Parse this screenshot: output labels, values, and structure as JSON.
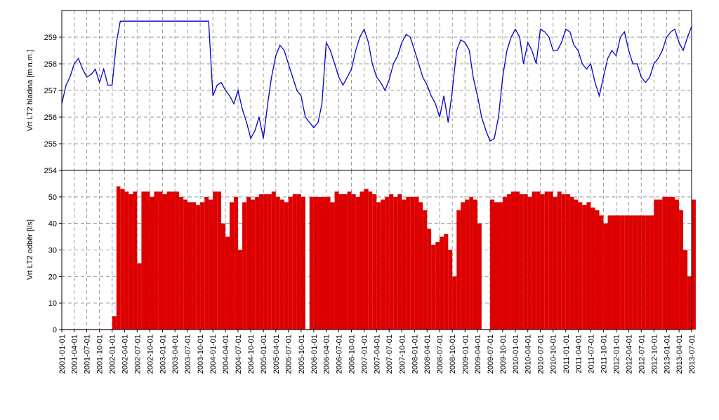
{
  "chart_data": [
    {
      "type": "line",
      "y_label": "Vrt LT2 hladina [m n.m.]",
      "xlim": [
        "2001-01-01",
        "2013-07-01"
      ],
      "ylim": [
        254,
        260
      ],
      "yticks": [
        254,
        255,
        256,
        257,
        258,
        259
      ],
      "grid": true,
      "x": [
        "2001-01-01",
        "2001-02-01",
        "2001-03-01",
        "2001-04-01",
        "2001-05-01",
        "2001-06-01",
        "2001-07-01",
        "2001-08-01",
        "2001-09-01",
        "2001-10-01",
        "2001-11-01",
        "2001-12-01",
        "2002-01-01",
        "2002-02-01",
        "2002-03-01",
        "2002-04-01",
        "2002-05-01",
        "2002-06-01",
        "2002-07-01",
        "2002-08-01",
        "2002-09-01",
        "2002-10-01",
        "2002-11-01",
        "2002-12-01",
        "2003-01-01",
        "2003-02-01",
        "2003-03-01",
        "2003-04-01",
        "2003-05-01",
        "2003-06-01",
        "2003-07-01",
        "2003-08-01",
        "2003-09-01",
        "2003-10-01",
        "2003-11-01",
        "2003-12-01",
        "2004-01-01",
        "2004-02-01",
        "2004-03-01",
        "2004-04-01",
        "2004-05-01",
        "2004-06-01",
        "2004-07-01",
        "2004-08-01",
        "2004-09-01",
        "2004-10-01",
        "2004-11-01",
        "2004-12-01",
        "2005-01-01",
        "2005-02-01",
        "2005-03-01",
        "2005-04-01",
        "2005-05-01",
        "2005-06-01",
        "2005-07-01",
        "2005-08-01",
        "2005-09-01",
        "2005-10-01",
        "2005-11-01",
        "2005-12-01",
        "2006-01-01",
        "2006-02-01",
        "2006-03-01",
        "2006-04-01",
        "2006-05-01",
        "2006-06-01",
        "2006-07-01",
        "2006-08-01",
        "2006-09-01",
        "2006-10-01",
        "2006-11-01",
        "2006-12-01",
        "2007-01-01",
        "2007-02-01",
        "2007-03-01",
        "2007-04-01",
        "2007-05-01",
        "2007-06-01",
        "2007-07-01",
        "2007-08-01",
        "2007-09-01",
        "2007-10-01",
        "2007-11-01",
        "2007-12-01",
        "2008-01-01",
        "2008-02-01",
        "2008-03-01",
        "2008-04-01",
        "2008-05-01",
        "2008-06-01",
        "2008-07-01",
        "2008-08-01",
        "2008-09-01",
        "2008-10-01",
        "2008-11-01",
        "2008-12-01",
        "2009-01-01",
        "2009-02-01",
        "2009-03-01",
        "2009-04-01",
        "2009-05-01",
        "2009-06-01",
        "2009-07-01",
        "2009-08-01",
        "2009-09-01",
        "2009-10-01",
        "2009-11-01",
        "2009-12-01",
        "2010-01-01",
        "2010-02-01",
        "2010-03-01",
        "2010-04-01",
        "2010-05-01",
        "2010-06-01",
        "2010-07-01",
        "2010-08-01",
        "2010-09-01",
        "2010-10-01",
        "2010-11-01",
        "2010-12-01",
        "2011-01-01",
        "2011-02-01",
        "2011-03-01",
        "2011-04-01",
        "2011-05-01",
        "2011-06-01",
        "2011-07-01",
        "2011-08-01",
        "2011-09-01",
        "2011-10-01",
        "2011-11-01",
        "2011-12-01",
        "2012-01-01",
        "2012-02-01",
        "2012-03-01",
        "2012-04-01",
        "2012-05-01",
        "2012-06-01",
        "2012-07-01",
        "2012-08-01",
        "2012-09-01",
        "2012-10-01",
        "2012-11-01",
        "2012-12-01",
        "2013-01-01",
        "2013-02-01",
        "2013-03-01",
        "2013-04-01",
        "2013-05-01",
        "2013-06-01",
        "2013-07-01"
      ],
      "series": [
        {
          "color": "#0000cc",
          "values": [
            256.5,
            257.2,
            257.5,
            258.0,
            258.2,
            257.8,
            257.5,
            257.6,
            257.8,
            257.3,
            257.8,
            257.2,
            257.2,
            258.8,
            259.6,
            259.6,
            259.6,
            259.6,
            259.6,
            259.6,
            259.6,
            259.6,
            259.6,
            259.6,
            259.6,
            259.6,
            259.6,
            259.6,
            259.6,
            259.6,
            259.6,
            259.6,
            259.6,
            259.6,
            259.6,
            259.6,
            256.8,
            257.2,
            257.3,
            257.0,
            256.8,
            256.5,
            257.0,
            256.3,
            255.8,
            255.2,
            255.5,
            256.0,
            255.2,
            256.5,
            257.5,
            258.3,
            258.7,
            258.5,
            258.0,
            257.5,
            257.0,
            256.8,
            256.0,
            255.8,
            255.6,
            255.8,
            256.5,
            258.8,
            258.5,
            258.0,
            257.5,
            257.2,
            257.5,
            257.8,
            258.5,
            259.0,
            259.3,
            258.8,
            258.0,
            257.5,
            257.3,
            257.0,
            257.4,
            258.0,
            258.3,
            258.8,
            259.1,
            259.0,
            258.5,
            258.0,
            257.5,
            257.2,
            256.8,
            256.5,
            256.0,
            256.8,
            255.8,
            257.0,
            258.5,
            258.9,
            258.8,
            258.5,
            257.5,
            256.8,
            256.0,
            255.5,
            255.1,
            255.2,
            256.0,
            257.5,
            258.5,
            259.0,
            259.3,
            259.0,
            258.0,
            258.8,
            258.5,
            258.0,
            259.3,
            259.2,
            259.0,
            258.5,
            258.5,
            258.8,
            259.3,
            259.2,
            258.7,
            258.5,
            258.0,
            257.8,
            258.0,
            257.3,
            256.8,
            257.5,
            258.2,
            258.5,
            258.3,
            259.0,
            259.2,
            258.5,
            258.0,
            258.0,
            257.5,
            257.3,
            257.5,
            258.0,
            258.2,
            258.5,
            259.0,
            259.2,
            259.3,
            258.8,
            258.5,
            259.0,
            259.4
          ]
        }
      ]
    },
    {
      "type": "bar",
      "y_label": "Vrt LT2 odběr [l/s]",
      "xlim": [
        "2001-01-01",
        "2013-07-01"
      ],
      "ylim": [
        0,
        60
      ],
      "yticks": [
        0,
        10,
        20,
        30,
        40,
        50
      ],
      "grid": true,
      "xticks": [
        "2001-01-01",
        "2001-04-01",
        "2001-07-01",
        "2001-10-01",
        "2002-01-01",
        "2002-04-01",
        "2002-07-01",
        "2002-10-01",
        "2003-01-01",
        "2003-04-01",
        "2003-07-01",
        "2003-10-01",
        "2004-01-01",
        "2004-04-01",
        "2004-07-01",
        "2004-10-01",
        "2005-01-01",
        "2005-04-01",
        "2005-07-01",
        "2005-10-01",
        "2006-01-01",
        "2006-04-01",
        "2006-07-01",
        "2006-10-01",
        "2007-01-01",
        "2007-04-01",
        "2007-07-01",
        "2007-10-01",
        "2008-01-01",
        "2008-04-01",
        "2008-07-01",
        "2008-10-01",
        "2009-01-01",
        "2009-04-01",
        "2009-07-01",
        "2009-10-01",
        "2010-01-01",
        "2010-04-01",
        "2010-07-01",
        "2010-10-01",
        "2011-01-01",
        "2011-04-01",
        "2011-07-01",
        "2011-10-01",
        "2012-01-01",
        "2012-04-01",
        "2012-07-01",
        "2012-10-01",
        "2013-01-01",
        "2013-04-01",
        "2013-07-01"
      ],
      "x": [
        "2001-01-01",
        "2001-02-01",
        "2001-03-01",
        "2001-04-01",
        "2001-05-01",
        "2001-06-01",
        "2001-07-01",
        "2001-08-01",
        "2001-09-01",
        "2001-10-01",
        "2001-11-01",
        "2001-12-01",
        "2002-01-01",
        "2002-02-01",
        "2002-03-01",
        "2002-04-01",
        "2002-05-01",
        "2002-06-01",
        "2002-07-01",
        "2002-08-01",
        "2002-09-01",
        "2002-10-01",
        "2002-11-01",
        "2002-12-01",
        "2003-01-01",
        "2003-02-01",
        "2003-03-01",
        "2003-04-01",
        "2003-05-01",
        "2003-06-01",
        "2003-07-01",
        "2003-08-01",
        "2003-09-01",
        "2003-10-01",
        "2003-11-01",
        "2003-12-01",
        "2004-01-01",
        "2004-02-01",
        "2004-03-01",
        "2004-04-01",
        "2004-05-01",
        "2004-06-01",
        "2004-07-01",
        "2004-08-01",
        "2004-09-01",
        "2004-10-01",
        "2004-11-01",
        "2004-12-01",
        "2005-01-01",
        "2005-02-01",
        "2005-03-01",
        "2005-04-01",
        "2005-05-01",
        "2005-06-01",
        "2005-07-01",
        "2005-08-01",
        "2005-09-01",
        "2005-10-01",
        "2005-11-01",
        "2005-12-01",
        "2006-01-01",
        "2006-02-01",
        "2006-03-01",
        "2006-04-01",
        "2006-05-01",
        "2006-06-01",
        "2006-07-01",
        "2006-08-01",
        "2006-09-01",
        "2006-10-01",
        "2006-11-01",
        "2006-12-01",
        "2007-01-01",
        "2007-02-01",
        "2007-03-01",
        "2007-04-01",
        "2007-05-01",
        "2007-06-01",
        "2007-07-01",
        "2007-08-01",
        "2007-09-01",
        "2007-10-01",
        "2007-11-01",
        "2007-12-01",
        "2008-01-01",
        "2008-02-01",
        "2008-03-01",
        "2008-04-01",
        "2008-05-01",
        "2008-06-01",
        "2008-07-01",
        "2008-08-01",
        "2008-09-01",
        "2008-10-01",
        "2008-11-01",
        "2008-12-01",
        "2009-01-01",
        "2009-02-01",
        "2009-03-01",
        "2009-04-01",
        "2009-05-01",
        "2009-06-01",
        "2009-07-01",
        "2009-08-01",
        "2009-09-01",
        "2009-10-01",
        "2009-11-01",
        "2009-12-01",
        "2010-01-01",
        "2010-02-01",
        "2010-03-01",
        "2010-04-01",
        "2010-05-01",
        "2010-06-01",
        "2010-07-01",
        "2010-08-01",
        "2010-09-01",
        "2010-10-01",
        "2010-11-01",
        "2010-12-01",
        "2011-01-01",
        "2011-02-01",
        "2011-03-01",
        "2011-04-01",
        "2011-05-01",
        "2011-06-01",
        "2011-07-01",
        "2011-08-01",
        "2011-09-01",
        "2011-10-01",
        "2011-11-01",
        "2011-12-01",
        "2012-01-01",
        "2012-02-01",
        "2012-03-01",
        "2012-04-01",
        "2012-05-01",
        "2012-06-01",
        "2012-07-01",
        "2012-08-01",
        "2012-09-01",
        "2012-10-01",
        "2012-11-01",
        "2012-12-01",
        "2013-01-01",
        "2013-02-01",
        "2013-03-01",
        "2013-04-01",
        "2013-05-01",
        "2013-06-01",
        "2013-07-01"
      ],
      "series": [
        {
          "color": "#dd0000",
          "values": [
            0,
            0,
            0,
            0,
            0,
            0,
            0,
            0,
            0,
            0,
            0,
            0,
            5,
            54,
            53,
            52,
            51,
            52,
            25,
            52,
            52,
            50,
            52,
            52,
            51,
            52,
            52,
            52,
            50,
            49,
            48,
            48,
            47,
            48,
            50,
            49,
            52,
            52,
            40,
            35,
            48,
            50,
            30,
            48,
            50,
            49,
            50,
            51,
            51,
            51,
            52,
            50,
            49,
            48,
            50,
            51,
            51,
            50,
            0,
            50,
            50,
            50,
            50,
            50,
            48,
            52,
            51,
            51,
            52,
            51,
            50,
            52,
            53,
            52,
            51,
            48,
            49,
            50,
            51,
            50,
            51,
            49,
            50,
            50,
            50,
            48,
            45,
            38,
            32,
            33,
            35,
            36,
            30,
            20,
            45,
            48,
            49,
            50,
            49,
            40,
            0,
            0,
            49,
            48,
            48,
            50,
            51,
            52,
            52,
            51,
            51,
            50,
            52,
            52,
            51,
            52,
            52,
            50,
            52,
            51,
            51,
            50,
            49,
            48,
            47,
            48,
            46,
            45,
            43,
            40,
            43,
            43,
            43,
            43,
            43,
            43,
            43,
            43,
            43,
            43,
            43,
            49,
            49,
            50,
            50,
            50,
            49,
            45,
            30,
            20,
            49
          ]
        }
      ]
    }
  ]
}
